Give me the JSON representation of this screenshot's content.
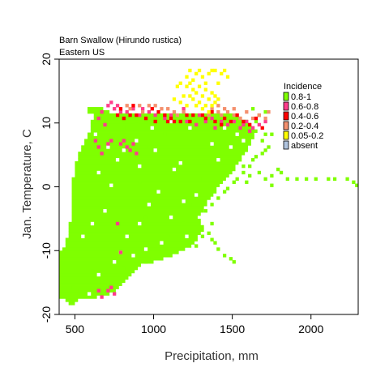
{
  "chart_data": {
    "type": "heatmap",
    "title": "Barn Swallow  (Hirundo rustica)",
    "subtitle": "Eastern US",
    "xlabel": "Precipitation, mm",
    "ylabel": "Jan. Temperature, C",
    "xlim": [
      400,
      2300
    ],
    "ylim": [
      -20,
      20
    ],
    "xticks": [
      500,
      1000,
      1500,
      2000
    ],
    "yticks": [
      -20,
      -10,
      0,
      10,
      20
    ],
    "grid": false,
    "legend": {
      "title": "Incidence",
      "placement": "top-right",
      "entries": [
        {
          "label": "0.8-1",
          "color": "#7fff00"
        },
        {
          "label": "0.6-0.8",
          "color": "#ff3c8c"
        },
        {
          "label": "0.4-0.6",
          "color": "#ff0000"
        },
        {
          "label": "0.2-0.4",
          "color": "#f4906e"
        },
        {
          "label": "0.05-0.2",
          "color": "#ffff00"
        },
        {
          "label": "absent",
          "color": "#b0c4de"
        }
      ]
    },
    "cell_size": {
      "precip_mm": 20,
      "temp_c": 0.5
    },
    "green_rows": [
      [
        -18.5,
        480,
        500
      ],
      [
        -18,
        440,
        520
      ],
      [
        -17.5,
        400,
        640
      ],
      [
        -17,
        400,
        720
      ],
      [
        -16.5,
        400,
        760
      ],
      [
        -16,
        400,
        780
      ],
      [
        -15.5,
        400,
        800
      ],
      [
        -15,
        400,
        820
      ],
      [
        -14.5,
        400,
        840
      ],
      [
        -14,
        400,
        860
      ],
      [
        -13.5,
        400,
        880
      ],
      [
        -13,
        400,
        900
      ],
      [
        -12.5,
        400,
        920
      ],
      [
        -12,
        400,
        1000
      ],
      [
        -11.5,
        400,
        1060
      ],
      [
        -11,
        400,
        1120
      ],
      [
        -10.5,
        400,
        1160
      ],
      [
        -10,
        420,
        1200
      ],
      [
        -9.5,
        440,
        1240
      ],
      [
        -9,
        440,
        1260
      ],
      [
        -8.5,
        440,
        1280
      ],
      [
        -8,
        460,
        1280
      ],
      [
        -7.5,
        460,
        1300
      ],
      [
        -7,
        460,
        1320
      ],
      [
        -6.5,
        460,
        1320
      ],
      [
        -6,
        460,
        1300
      ],
      [
        -5.5,
        480,
        1300
      ],
      [
        -5,
        480,
        1280
      ],
      [
        -4.5,
        480,
        1300
      ],
      [
        -4,
        480,
        1320
      ],
      [
        -3.5,
        480,
        1320
      ],
      [
        -3,
        480,
        1340
      ],
      [
        -2.5,
        480,
        1340
      ],
      [
        -2,
        480,
        1360
      ],
      [
        -1.5,
        480,
        1380
      ],
      [
        -1,
        480,
        1400
      ],
      [
        -0.5,
        480,
        1400
      ],
      [
        0,
        480,
        1420
      ],
      [
        0.5,
        480,
        1440
      ],
      [
        1,
        480,
        1460
      ],
      [
        1.5,
        500,
        1480
      ],
      [
        2,
        500,
        1500
      ],
      [
        2.5,
        500,
        1520
      ],
      [
        3,
        500,
        1520
      ],
      [
        3.5,
        500,
        1540
      ],
      [
        4,
        520,
        1560
      ],
      [
        4.5,
        520,
        1560
      ],
      [
        5,
        520,
        1580
      ],
      [
        5.5,
        540,
        1600
      ],
      [
        6,
        540,
        1600
      ],
      [
        6.5,
        560,
        1620
      ],
      [
        7,
        560,
        1620
      ],
      [
        7.5,
        580,
        1640
      ],
      [
        8,
        580,
        1640
      ],
      [
        8.5,
        600,
        1660
      ],
      [
        9,
        600,
        1640
      ],
      [
        9.5,
        600,
        1620
      ],
      [
        10,
        600,
        1600
      ],
      [
        10.5,
        620,
        1560
      ],
      [
        11,
        620,
        1540
      ],
      [
        11.5,
        580,
        720
      ],
      [
        12,
        580,
        680
      ]
    ],
    "cells": [
      [
        480,
        -16
      ],
      [
        420,
        -12.5
      ],
      [
        440,
        -17
      ],
      [
        460,
        -18.5
      ],
      [
        540,
        -17
      ],
      [
        520,
        -16.5
      ],
      [
        600,
        -13.5
      ],
      [
        700,
        -15.5
      ],
      [
        760,
        -13
      ],
      [
        800,
        -13
      ],
      [
        860,
        -12
      ],
      [
        940,
        -12
      ],
      [
        980,
        -11.5
      ],
      [
        1040,
        -11.5
      ],
      [
        1100,
        -10.5
      ],
      [
        1140,
        -10
      ],
      [
        1180,
        -9.5
      ],
      [
        1220,
        -9
      ],
      [
        1260,
        -9.5
      ],
      [
        1240,
        -8.5
      ],
      [
        1300,
        -8
      ],
      [
        1280,
        -7
      ],
      [
        1340,
        -7.5
      ],
      [
        1400,
        -10
      ],
      [
        1440,
        -11
      ],
      [
        1480,
        -11.5
      ],
      [
        1500,
        -12
      ],
      [
        1380,
        -9
      ],
      [
        1360,
        -8.5
      ],
      [
        1360,
        -6
      ],
      [
        1320,
        -4
      ],
      [
        1340,
        -2
      ],
      [
        1360,
        -3
      ],
      [
        1400,
        -2
      ],
      [
        1440,
        -1
      ],
      [
        1460,
        -0.5
      ],
      [
        1500,
        0.5
      ],
      [
        1520,
        1
      ],
      [
        1560,
        2
      ],
      [
        1560,
        3
      ],
      [
        1600,
        3
      ],
      [
        1620,
        4
      ],
      [
        1640,
        4.5
      ],
      [
        1680,
        5
      ],
      [
        1700,
        5.5
      ],
      [
        1720,
        6
      ],
      [
        1680,
        7
      ],
      [
        1700,
        8
      ],
      [
        1740,
        8
      ],
      [
        1640,
        10
      ],
      [
        1660,
        11
      ],
      [
        1700,
        11.5
      ],
      [
        1620,
        12
      ],
      [
        1580,
        0.5
      ],
      [
        1600,
        1.5
      ],
      [
        1660,
        2
      ],
      [
        1700,
        1
      ],
      [
        1740,
        1.5
      ],
      [
        1740,
        0
      ],
      [
        1780,
        2.5
      ],
      [
        1800,
        2
      ],
      [
        1840,
        1
      ],
      [
        1900,
        1
      ],
      [
        1960,
        1
      ],
      [
        2020,
        1
      ],
      [
        2100,
        1
      ],
      [
        2140,
        1
      ],
      [
        2220,
        1
      ],
      [
        2260,
        0.5
      ],
      [
        2280,
        0
      ],
      [
        600,
        2
      ],
      [
        560,
        5
      ],
      [
        580,
        7
      ],
      [
        660,
        10.5
      ],
      [
        700,
        9
      ],
      [
        760,
        11
      ],
      [
        820,
        9
      ],
      [
        880,
        9.5
      ],
      [
        900,
        0.5
      ],
      [
        880,
        -3
      ],
      [
        940,
        -5
      ],
      [
        1000,
        -7
      ],
      [
        1080,
        -8
      ],
      [
        1180,
        -6
      ],
      [
        1240,
        -3
      ],
      [
        1140,
        -1
      ],
      [
        1020,
        3
      ],
      [
        960,
        6
      ],
      [
        1060,
        8
      ],
      [
        1160,
        5
      ],
      [
        1240,
        7
      ],
      [
        1300,
        9
      ],
      [
        1340,
        3
      ],
      [
        1280,
        1
      ]
    ],
    "holes": [
      [
        520,
        -18.5
      ],
      [
        580,
        -17
      ],
      [
        640,
        -14
      ],
      [
        780,
        -10.5
      ],
      [
        820,
        -8
      ],
      [
        900,
        -6
      ],
      [
        960,
        -3
      ],
      [
        1020,
        -1
      ],
      [
        720,
        0
      ],
      [
        640,
        2
      ],
      [
        760,
        4
      ],
      [
        1100,
        -5
      ],
      [
        1180,
        -2.5
      ],
      [
        1260,
        -1.5
      ],
      [
        1120,
        2.5
      ],
      [
        1400,
        4
      ],
      [
        1480,
        6
      ],
      [
        1520,
        8
      ],
      [
        1560,
        7
      ],
      [
        1440,
        9
      ],
      [
        1360,
        6.5
      ],
      [
        1220,
        9
      ],
      [
        1100,
        10
      ],
      [
        980,
        9
      ],
      [
        880,
        7
      ],
      [
        800,
        5.5
      ],
      [
        700,
        6
      ],
      [
        620,
        8
      ],
      [
        1300,
        -5
      ],
      [
        1200,
        -8
      ],
      [
        1040,
        -9
      ],
      [
        940,
        -10
      ],
      [
        860,
        -11
      ],
      [
        740,
        -12
      ],
      [
        1160,
        3.5
      ],
      [
        1000,
        5.5
      ],
      [
        900,
        3
      ],
      [
        680,
        -4
      ],
      [
        600,
        -6
      ],
      [
        540,
        -8
      ]
    ],
    "pink_cells": [
      [
        640,
        10.5
      ],
      [
        660,
        11.5
      ],
      [
        680,
        9.5
      ],
      [
        700,
        12.5
      ],
      [
        720,
        13
      ],
      [
        740,
        12
      ],
      [
        760,
        12.5
      ],
      [
        780,
        11.5
      ],
      [
        640,
        -16.5
      ],
      [
        660,
        -17.5
      ],
      [
        700,
        -16.5
      ],
      [
        720,
        -16
      ],
      [
        740,
        -17
      ],
      [
        640,
        6
      ],
      [
        660,
        5
      ],
      [
        700,
        6.5
      ],
      [
        720,
        7
      ],
      [
        780,
        6.5
      ],
      [
        800,
        7
      ],
      [
        820,
        6
      ],
      [
        840,
        5.5
      ],
      [
        860,
        6.5
      ],
      [
        880,
        5
      ],
      [
        900,
        11
      ],
      [
        920,
        12
      ],
      [
        960,
        11.5
      ],
      [
        1000,
        11
      ],
      [
        1060,
        10.5
      ],
      [
        1100,
        11
      ],
      [
        1200,
        10
      ],
      [
        1260,
        9.5
      ],
      [
        1320,
        10
      ],
      [
        1380,
        9
      ],
      [
        1420,
        10
      ],
      [
        1460,
        9.5
      ],
      [
        1500,
        10
      ],
      [
        1540,
        9
      ],
      [
        1580,
        10
      ],
      [
        1620,
        9
      ],
      [
        1660,
        9.5
      ],
      [
        1700,
        10
      ],
      [
        1360,
        10.5
      ],
      [
        1280,
        11
      ],
      [
        1180,
        12
      ],
      [
        780,
        -10.5
      ],
      [
        760,
        -6
      ],
      [
        620,
        7
      ],
      [
        820,
        11.5
      ],
      [
        860,
        12
      ],
      [
        1560,
        9.5
      ],
      [
        1600,
        8.5
      ]
    ],
    "red_cells": [
      [
        760,
        11
      ],
      [
        780,
        12
      ],
      [
        800,
        10.5
      ],
      [
        840,
        11
      ],
      [
        860,
        12.5
      ],
      [
        880,
        11
      ],
      [
        940,
        10.5
      ],
      [
        980,
        12
      ],
      [
        1000,
        10
      ],
      [
        1020,
        11.5
      ],
      [
        1060,
        11
      ],
      [
        1080,
        10
      ],
      [
        1100,
        10.5
      ],
      [
        1120,
        10
      ],
      [
        1160,
        10
      ],
      [
        1200,
        11
      ],
      [
        1220,
        10
      ],
      [
        1240,
        11
      ],
      [
        1300,
        11
      ],
      [
        1320,
        10.5
      ],
      [
        1360,
        11.5
      ],
      [
        1380,
        10
      ],
      [
        1420,
        9.5
      ],
      [
        1440,
        10.5
      ],
      [
        1480,
        10
      ],
      [
        1520,
        11
      ],
      [
        1560,
        10
      ],
      [
        1600,
        9.5
      ],
      [
        1640,
        10.5
      ],
      [
        1680,
        9
      ]
    ],
    "salmon_cells": [
      [
        820,
        12.5
      ],
      [
        840,
        12
      ],
      [
        900,
        12.5
      ],
      [
        920,
        11.5
      ],
      [
        960,
        12.5
      ],
      [
        1000,
        12.5
      ],
      [
        1040,
        12
      ],
      [
        1080,
        12
      ],
      [
        1120,
        11.5
      ],
      [
        1140,
        11
      ],
      [
        1180,
        11.5
      ],
      [
        1340,
        11
      ],
      [
        1360,
        12
      ],
      [
        1400,
        11.5
      ],
      [
        1420,
        11
      ],
      [
        1440,
        12
      ],
      [
        1460,
        11.5
      ],
      [
        1500,
        11
      ],
      [
        1540,
        10.5
      ],
      [
        1580,
        11.5
      ],
      [
        1620,
        10.5
      ],
      [
        1660,
        11
      ],
      [
        1700,
        10.5
      ],
      [
        1720,
        11.5
      ],
      [
        1500,
        12
      ],
      [
        1400,
        12.5
      ]
    ],
    "yellow_cells": [
      [
        1200,
        17
      ],
      [
        1220,
        18
      ],
      [
        1240,
        16.5
      ],
      [
        1260,
        17.5
      ],
      [
        1280,
        18
      ],
      [
        1300,
        17
      ],
      [
        1320,
        16
      ],
      [
        1340,
        17.5
      ],
      [
        1360,
        18
      ],
      [
        1380,
        18
      ],
      [
        1420,
        17.5
      ],
      [
        1440,
        18
      ],
      [
        1460,
        17
      ],
      [
        1200,
        15.5
      ],
      [
        1220,
        16
      ],
      [
        1240,
        15
      ],
      [
        1260,
        14.5
      ],
      [
        1280,
        15.5
      ],
      [
        1300,
        14
      ],
      [
        1320,
        15
      ],
      [
        1340,
        13.5
      ],
      [
        1360,
        14.5
      ],
      [
        1380,
        13
      ],
      [
        1240,
        13.5
      ],
      [
        1260,
        12.5
      ],
      [
        1280,
        13
      ],
      [
        1300,
        12
      ],
      [
        1320,
        12.5
      ],
      [
        1340,
        11.5
      ],
      [
        1360,
        12.5
      ],
      [
        1380,
        14
      ],
      [
        1400,
        13.5
      ],
      [
        1180,
        14
      ],
      [
        1160,
        16
      ],
      [
        1140,
        15.5
      ],
      [
        1120,
        13.5
      ],
      [
        1160,
        13
      ],
      [
        1200,
        12.5
      ],
      [
        1220,
        14
      ],
      [
        1400,
        16
      ]
    ]
  }
}
